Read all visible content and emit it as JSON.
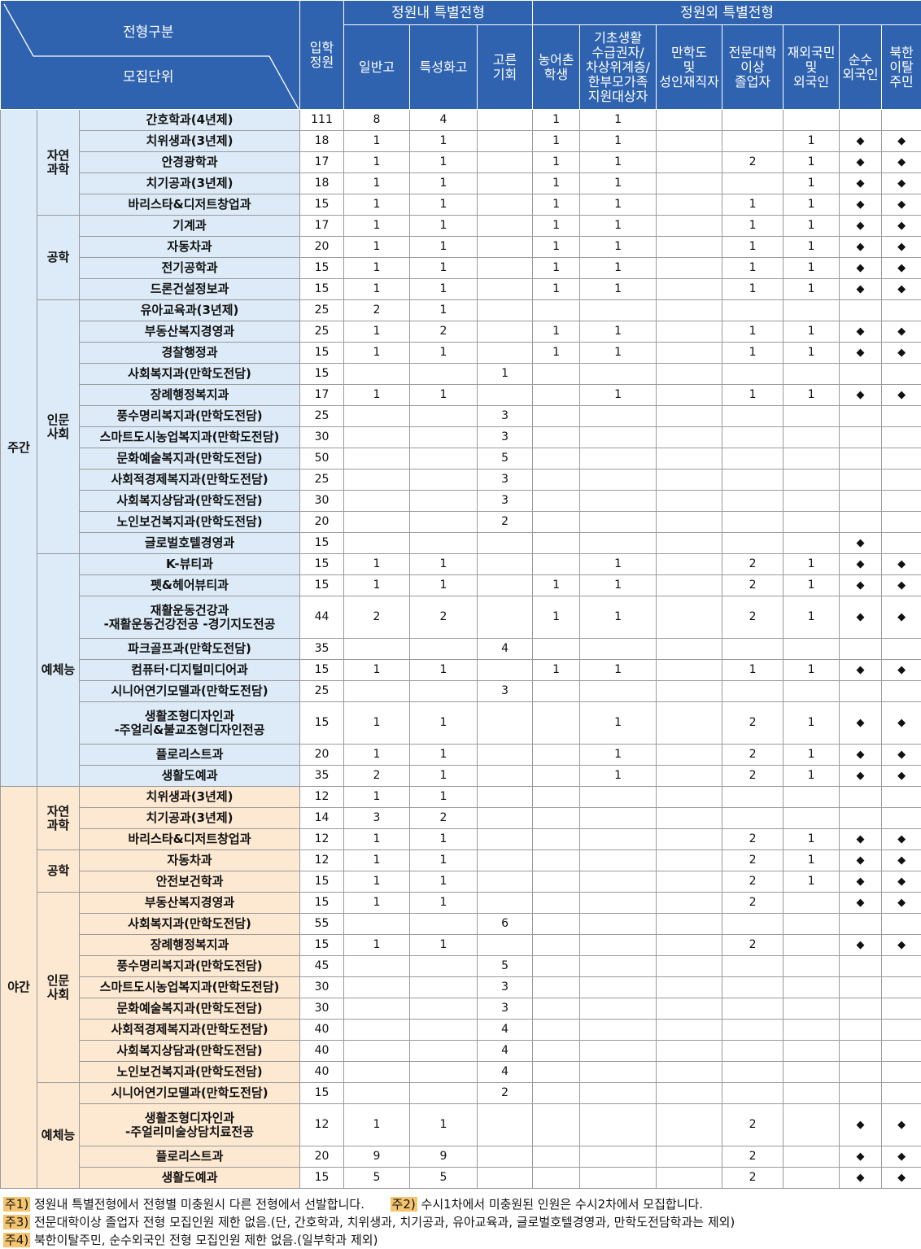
{
  "header": {
    "corner_top": "전형구분",
    "corner_bottom": "모집단위",
    "quota": "입학\n정원",
    "group_in": "정원내 특별전형",
    "group_out": "정원외 특별전형",
    "columns": [
      "일반고",
      "특성화고",
      "고른\n기회",
      "농어촌\n학생",
      "기초생활\n수급권자/\n차상위계층/\n한부모가족\n지원대상자",
      "만학도\n및\n성인재직자",
      "전문대학\n이상\n졸업자",
      "재외국민\n및\n외국인",
      "순수\n외국인",
      "북한\n이탈\n주민"
    ]
  },
  "colors": {
    "header": "#2f63b0",
    "day": "#dcebf7",
    "night": "#fde9d2",
    "note_tag": "#f5c46e"
  },
  "mark_symbol": "◆",
  "sections": [
    {
      "shift": "주간",
      "style": "day",
      "categories": [
        {
          "name": "자연\n과학",
          "rows": [
            [
              "간호학과(4년제)",
              "111",
              "8",
              "4",
              "",
              "1",
              "1",
              "",
              "",
              "",
              "",
              ""
            ],
            [
              "치위생과(3년제)",
              "18",
              "1",
              "1",
              "",
              "1",
              "1",
              "",
              "",
              "1",
              "◆",
              "◆"
            ],
            [
              "안경광학과",
              "17",
              "1",
              "1",
              "",
              "1",
              "1",
              "",
              "2",
              "1",
              "◆",
              "◆"
            ],
            [
              "치기공과(3년제)",
              "18",
              "1",
              "1",
              "",
              "1",
              "1",
              "",
              "",
              "1",
              "◆",
              "◆"
            ],
            [
              "바리스타&디저트창업과",
              "15",
              "1",
              "1",
              "",
              "1",
              "1",
              "",
              "1",
              "1",
              "◆",
              "◆"
            ]
          ]
        },
        {
          "name": "공학",
          "rows": [
            [
              "기계과",
              "17",
              "1",
              "1",
              "",
              "1",
              "1",
              "",
              "1",
              "1",
              "◆",
              "◆"
            ],
            [
              "자동차과",
              "20",
              "1",
              "1",
              "",
              "1",
              "1",
              "",
              "1",
              "1",
              "◆",
              "◆"
            ],
            [
              "전기공학과",
              "15",
              "1",
              "1",
              "",
              "1",
              "1",
              "",
              "1",
              "1",
              "◆",
              "◆"
            ],
            [
              "드론건설정보과",
              "15",
              "1",
              "1",
              "",
              "1",
              "1",
              "",
              "1",
              "1",
              "◆",
              "◆"
            ]
          ]
        },
        {
          "name": "인문\n사회",
          "rows": [
            [
              "유아교육과(3년제)",
              "25",
              "2",
              "1",
              "",
              "",
              "",
              "",
              "",
              "",
              "",
              ""
            ],
            [
              "부동산복지경영과",
              "25",
              "1",
              "2",
              "",
              "1",
              "1",
              "",
              "1",
              "1",
              "◆",
              "◆"
            ],
            [
              "경찰행정과",
              "15",
              "1",
              "1",
              "",
              "1",
              "1",
              "",
              "1",
              "1",
              "◆",
              "◆"
            ],
            [
              "사회복지과(만학도전담)",
              "15",
              "",
              "",
              "1",
              "",
              "",
              "",
              "",
              "",
              "",
              ""
            ],
            [
              "장례행정복지과",
              "17",
              "1",
              "1",
              "",
              "",
              "1",
              "",
              "1",
              "1",
              "◆",
              "◆"
            ],
            [
              "풍수명리복지과(만학도전담)",
              "25",
              "",
              "",
              "3",
              "",
              "",
              "",
              "",
              "",
              "",
              ""
            ],
            [
              "스마트도시농업복지과(만학도전담)",
              "30",
              "",
              "",
              "3",
              "",
              "",
              "",
              "",
              "",
              "",
              ""
            ],
            [
              "문화예술복지과(만학도전담)",
              "50",
              "",
              "",
              "5",
              "",
              "",
              "",
              "",
              "",
              "",
              ""
            ],
            [
              "사회적경제복지과(만학도전담)",
              "25",
              "",
              "",
              "3",
              "",
              "",
              "",
              "",
              "",
              "",
              ""
            ],
            [
              "사회복지상담과(만학도전담)",
              "30",
              "",
              "",
              "3",
              "",
              "",
              "",
              "",
              "",
              "",
              ""
            ],
            [
              "노인보건복지과(만학도전담)",
              "20",
              "",
              "",
              "2",
              "",
              "",
              "",
              "",
              "",
              "",
              ""
            ],
            [
              "글로벌호텔경영과",
              "15",
              "",
              "",
              "",
              "",
              "",
              "",
              "",
              "",
              "◆",
              ""
            ]
          ]
        },
        {
          "name": "예체능",
          "rows": [
            [
              "K-뷰티과",
              "15",
              "1",
              "1",
              "",
              "",
              "1",
              "",
              "2",
              "1",
              "◆",
              "◆"
            ],
            [
              "펫&헤어뷰티과",
              "15",
              "1",
              "1",
              "",
              "1",
              "1",
              "",
              "2",
              "1",
              "◆",
              "◆"
            ],
            [
              "재활운동건강과\n-재활운동건강전공 -경기지도전공",
              "44",
              "2",
              "2",
              "",
              "1",
              "1",
              "",
              "2",
              "1",
              "◆",
              "◆"
            ],
            [
              "파크골프과(만학도전담)",
              "35",
              "",
              "",
              "4",
              "",
              "",
              "",
              "",
              "",
              "",
              ""
            ],
            [
              "컴퓨터·디지털미디어과",
              "15",
              "1",
              "1",
              "",
              "1",
              "1",
              "",
              "1",
              "1",
              "◆",
              "◆"
            ],
            [
              "시니어연기모델과(만학도전담)",
              "25",
              "",
              "",
              "3",
              "",
              "",
              "",
              "",
              "",
              "",
              ""
            ],
            [
              "생활조형디자인과\n-주얼리&불교조형디자인전공",
              "15",
              "1",
              "1",
              "",
              "",
              "1",
              "",
              "2",
              "1",
              "◆",
              "◆"
            ],
            [
              "플로리스트과",
              "20",
              "1",
              "1",
              "",
              "",
              "1",
              "",
              "2",
              "1",
              "◆",
              "◆"
            ],
            [
              "생활도예과",
              "35",
              "2",
              "1",
              "",
              "",
              "1",
              "",
              "2",
              "1",
              "◆",
              "◆"
            ]
          ]
        }
      ]
    },
    {
      "shift": "야간",
      "style": "night",
      "categories": [
        {
          "name": "자연\n과학",
          "rows": [
            [
              "치위생과(3년제)",
              "12",
              "1",
              "1",
              "",
              "",
              "",
              "",
              "",
              "",
              "",
              ""
            ],
            [
              "치기공과(3년제)",
              "14",
              "3",
              "2",
              "",
              "",
              "",
              "",
              "",
              "",
              "",
              ""
            ],
            [
              "바리스타&디저트창업과",
              "12",
              "1",
              "1",
              "",
              "",
              "",
              "",
              "2",
              "1",
              "◆",
              "◆"
            ]
          ]
        },
        {
          "name": "공학",
          "rows": [
            [
              "자동차과",
              "12",
              "1",
              "1",
              "",
              "",
              "",
              "",
              "2",
              "1",
              "◆",
              "◆"
            ],
            [
              "안전보건학과",
              "15",
              "1",
              "1",
              "",
              "",
              "",
              "",
              "2",
              "1",
              "◆",
              "◆"
            ]
          ]
        },
        {
          "name": "인문\n사회",
          "rows": [
            [
              "부동산복지경영과",
              "15",
              "1",
              "1",
              "",
              "",
              "",
              "",
              "2",
              "",
              "◆",
              "◆"
            ],
            [
              "사회복지과(만학도전담)",
              "55",
              "",
              "",
              "6",
              "",
              "",
              "",
              "",
              "",
              "",
              ""
            ],
            [
              "장례행정복지과",
              "15",
              "1",
              "1",
              "",
              "",
              "",
              "",
              "2",
              "",
              "◆",
              "◆"
            ],
            [
              "풍수명리복지과(만학도전담)",
              "45",
              "",
              "",
              "5",
              "",
              "",
              "",
              "",
              "",
              "",
              ""
            ],
            [
              "스마트도시농업복지과(만학도전담)",
              "30",
              "",
              "",
              "3",
              "",
              "",
              "",
              "",
              "",
              "",
              ""
            ],
            [
              "문화예술복지과(만학도전담)",
              "30",
              "",
              "",
              "3",
              "",
              "",
              "",
              "",
              "",
              "",
              ""
            ],
            [
              "사회적경제복지과(만학도전담)",
              "40",
              "",
              "",
              "4",
              "",
              "",
              "",
              "",
              "",
              "",
              ""
            ],
            [
              "사회복지상담과(만학도전담)",
              "40",
              "",
              "",
              "4",
              "",
              "",
              "",
              "",
              "",
              "",
              ""
            ],
            [
              "노인보건복지과(만학도전담)",
              "40",
              "",
              "",
              "4",
              "",
              "",
              "",
              "",
              "",
              "",
              ""
            ]
          ]
        },
        {
          "name": "예체능",
          "rows": [
            [
              "시니어연기모델과(만학도전담)",
              "15",
              "",
              "",
              "2",
              "",
              "",
              "",
              "",
              "",
              "",
              ""
            ],
            [
              "생활조형디자인과\n-주얼리미술상담치료전공",
              "12",
              "1",
              "1",
              "",
              "",
              "",
              "",
              "2",
              "",
              "◆",
              "◆"
            ],
            [
              "플로리스트과",
              "20",
              "9",
              "9",
              "",
              "",
              "",
              "",
              "2",
              "",
              "◆",
              "◆"
            ],
            [
              "생활도예과",
              "15",
              "5",
              "5",
              "",
              "",
              "",
              "",
              "2",
              "",
              "◆",
              "◆"
            ]
          ]
        }
      ]
    }
  ],
  "notes": [
    {
      "tag": "주1)",
      "text": "정원내 특별전형에서 전형별 미충원시 다른 전형에서 선발합니다."
    },
    {
      "tag": "주2)",
      "text": "수시1차에서 미충원된 인원은 수시2차에서 모집합니다."
    },
    {
      "tag": "주3)",
      "text": "전문대학이상 졸업자 전형 모집인원 제한 없음.(단, 간호학과, 치위생과, 치기공과, 유아교육과, 글로벌호텔경영과, 만학도전담학과는 제외)"
    },
    {
      "tag": "주4)",
      "text": "북한이탈주민, 순수외국인 전형 모집인원 제한 없음.(일부학과 제외)"
    }
  ]
}
